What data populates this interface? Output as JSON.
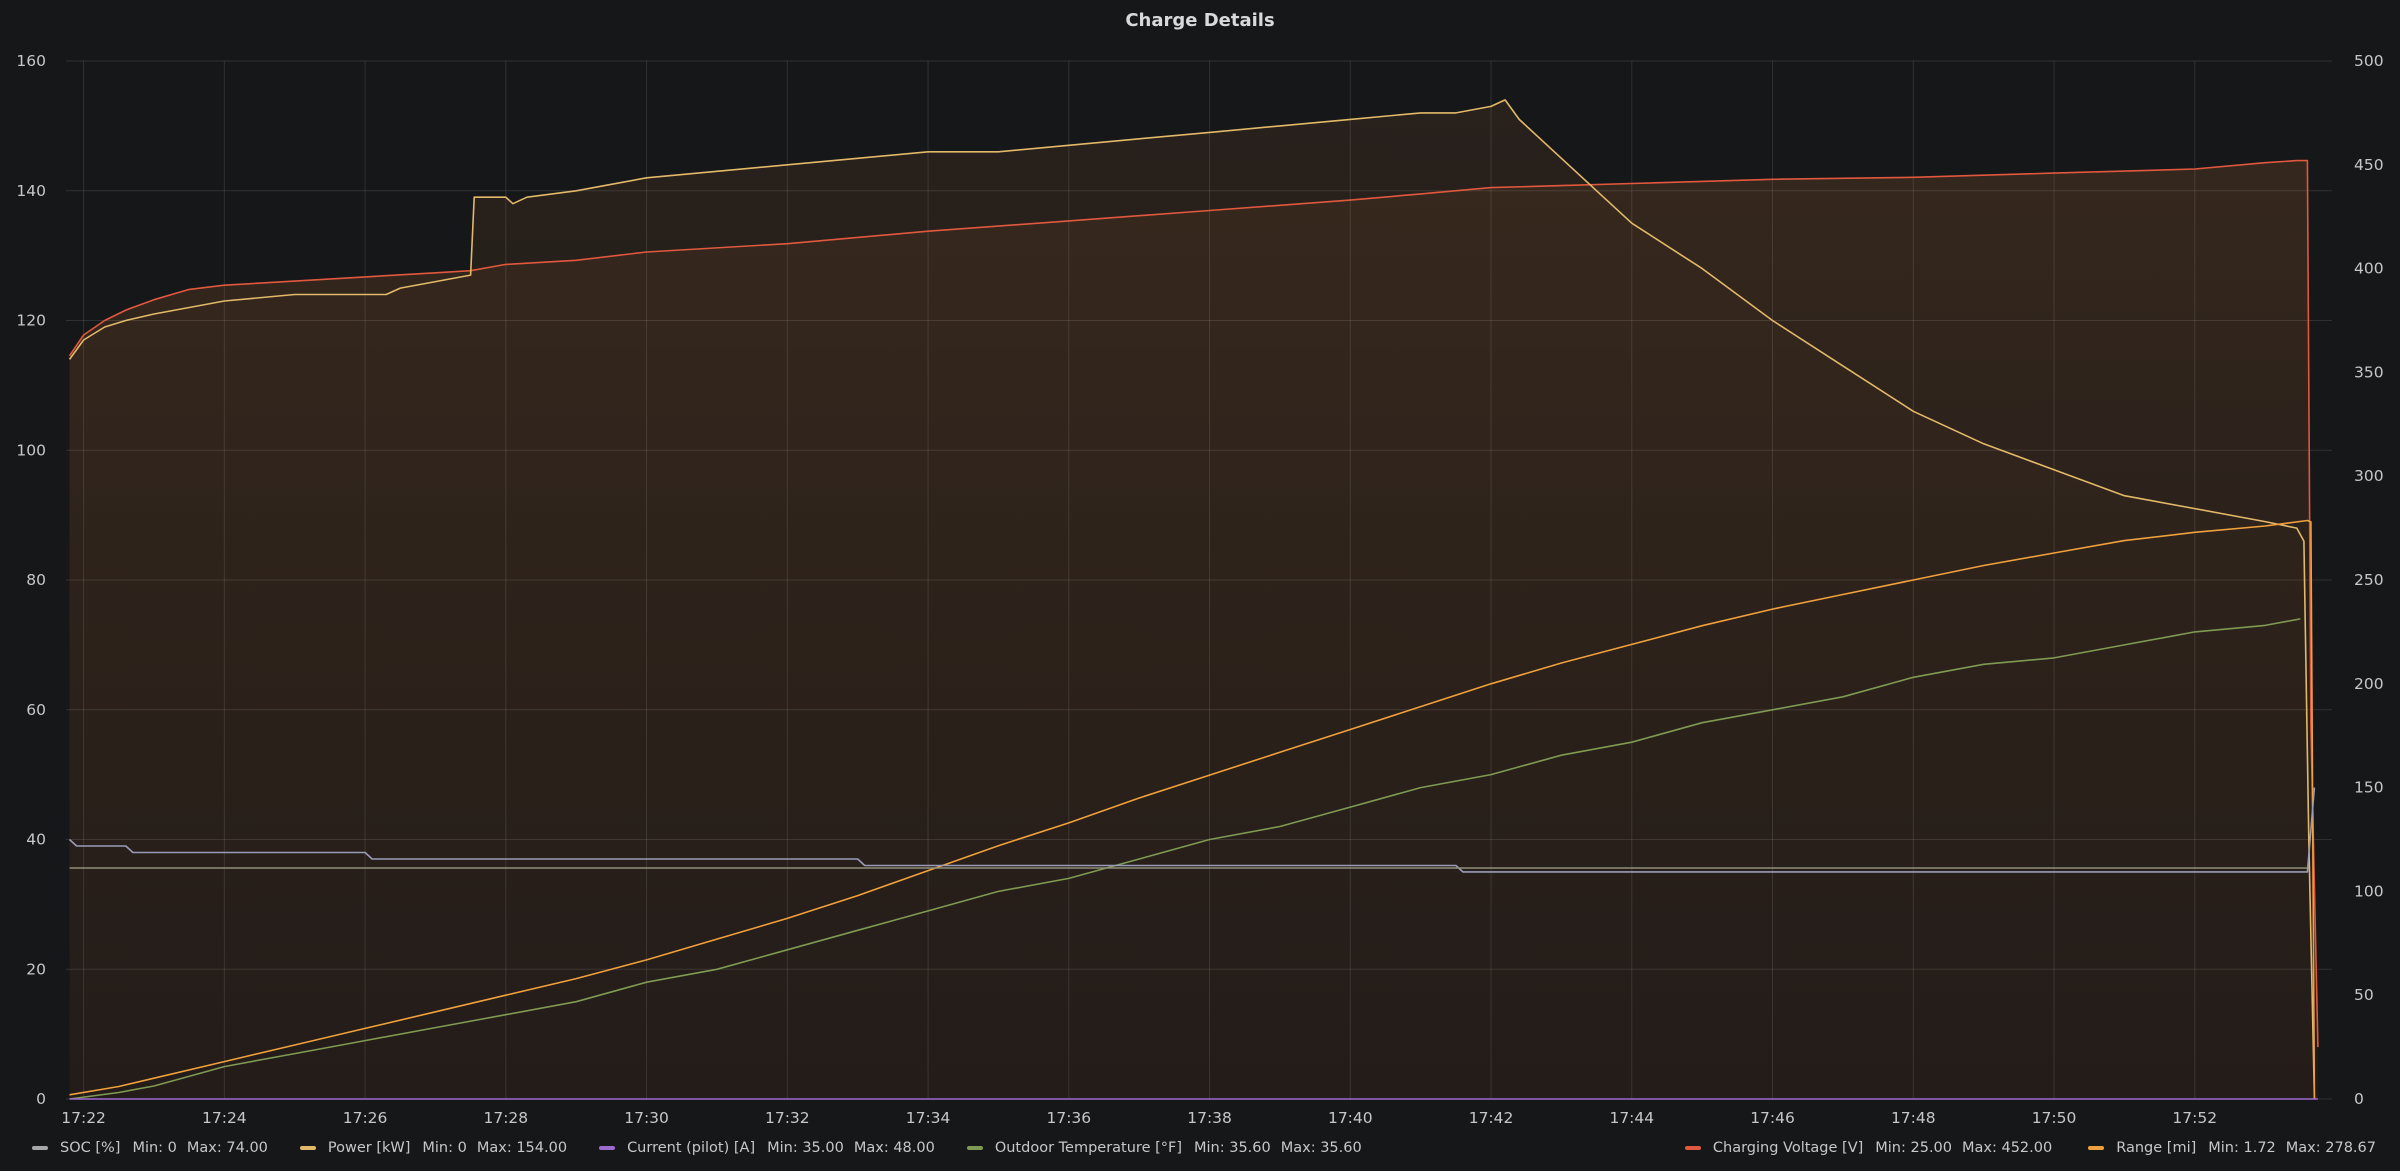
{
  "panel": {
    "title": "Charge Details"
  },
  "legend_left": [
    {
      "name": "SOC [%]",
      "min_label": "Min: 0",
      "max_label": "Max: 74.00",
      "color": "#a6a7a9",
      "icon": "legend-line-icon"
    },
    {
      "name": "Power [kW]",
      "min_label": "Min: 0",
      "max_label": "Max: 154.00",
      "color": "#e2b968",
      "icon": "legend-line-icon"
    },
    {
      "name": "Current (pilot) [A]",
      "min_label": "Min: 35.00",
      "max_label": "Max: 48.00",
      "color": "#9d6bd0",
      "icon": "legend-line-icon"
    },
    {
      "name": "Outdoor Temperature [°F]",
      "min_label": "Min: 35.60",
      "max_label": "Max: 35.60",
      "color": "#7f9a52",
      "icon": "legend-line-icon"
    }
  ],
  "legend_right": [
    {
      "name": "Charging Voltage [V]",
      "min_label": "Min: 25.00",
      "max_label": "Max: 452.00",
      "color": "#e0583e",
      "icon": "legend-line-icon"
    },
    {
      "name": "Range [mi]",
      "min_label": "Min: 1.72",
      "max_label": "Max: 278.67",
      "color": "#f0a03c",
      "icon": "legend-line-icon"
    }
  ],
  "chart_data": {
    "type": "line",
    "title": "Charge Details",
    "xlabel": "",
    "ylabel": "",
    "x_ticks": [
      "17:22",
      "17:24",
      "17:26",
      "17:28",
      "17:30",
      "17:32",
      "17:34",
      "17:36",
      "17:38",
      "17:40",
      "17:42",
      "17:44",
      "17:46",
      "17:48",
      "17:50",
      "17:52"
    ],
    "x_range_minutes": [
      21.75,
      53.95
    ],
    "y_left": {
      "ticks": [
        0,
        20,
        40,
        60,
        80,
        100,
        120,
        140,
        160
      ],
      "ylim": [
        0,
        160
      ]
    },
    "y_right": {
      "ticks": [
        0,
        50,
        100,
        150,
        200,
        250,
        300,
        350,
        400,
        450,
        500
      ],
      "ylim": [
        0,
        500
      ]
    },
    "grid": true,
    "legend_position": "bottom",
    "series": [
      {
        "name": "Charging Voltage [V]",
        "axis": "right",
        "color": "#e0583e",
        "fill": true,
        "points": [
          [
            21.8,
            358
          ],
          [
            22.0,
            368
          ],
          [
            22.3,
            375
          ],
          [
            22.6,
            380
          ],
          [
            23.0,
            385
          ],
          [
            23.5,
            390
          ],
          [
            24.0,
            392
          ],
          [
            25.0,
            394
          ],
          [
            26.0,
            396
          ],
          [
            27.0,
            398
          ],
          [
            27.5,
            399
          ],
          [
            28.0,
            402
          ],
          [
            29.0,
            404
          ],
          [
            30.0,
            408
          ],
          [
            32.0,
            412
          ],
          [
            34.0,
            418
          ],
          [
            36.0,
            423
          ],
          [
            38.0,
            428
          ],
          [
            40.0,
            433
          ],
          [
            41.0,
            436
          ],
          [
            42.0,
            439
          ],
          [
            43.0,
            440
          ],
          [
            44.0,
            441
          ],
          [
            46.0,
            443
          ],
          [
            48.0,
            444
          ],
          [
            50.0,
            446
          ],
          [
            52.0,
            448
          ],
          [
            53.0,
            451
          ],
          [
            53.45,
            452
          ],
          [
            53.6,
            452
          ],
          [
            53.65,
            180
          ],
          [
            53.75,
            25
          ]
        ]
      },
      {
        "name": "Power [kW]",
        "axis": "left",
        "color": "#e2b968",
        "fill": true,
        "points": [
          [
            21.8,
            114
          ],
          [
            22.0,
            117
          ],
          [
            22.3,
            119
          ],
          [
            22.6,
            120
          ],
          [
            23.0,
            121
          ],
          [
            23.5,
            122
          ],
          [
            24.0,
            123
          ],
          [
            25.0,
            124
          ],
          [
            26.0,
            124
          ],
          [
            26.3,
            124
          ],
          [
            26.5,
            125
          ],
          [
            27.0,
            126
          ],
          [
            27.5,
            127
          ],
          [
            27.55,
            139
          ],
          [
            28.0,
            139
          ],
          [
            28.1,
            138
          ],
          [
            28.3,
            139
          ],
          [
            29.0,
            140
          ],
          [
            29.5,
            141
          ],
          [
            30.0,
            142
          ],
          [
            31.0,
            143
          ],
          [
            32.0,
            144
          ],
          [
            33.0,
            145
          ],
          [
            34.0,
            146
          ],
          [
            35.0,
            146
          ],
          [
            36.0,
            147
          ],
          [
            37.0,
            148
          ],
          [
            38.0,
            149
          ],
          [
            39.0,
            150
          ],
          [
            40.0,
            151
          ],
          [
            41.0,
            152
          ],
          [
            41.5,
            152
          ],
          [
            42.0,
            153
          ],
          [
            42.2,
            154
          ],
          [
            42.4,
            151
          ],
          [
            42.8,
            147
          ],
          [
            43.2,
            143
          ],
          [
            43.5,
            140
          ],
          [
            44.0,
            135
          ],
          [
            45.0,
            128
          ],
          [
            46.0,
            120
          ],
          [
            47.0,
            113
          ],
          [
            48.0,
            106
          ],
          [
            49.0,
            101
          ],
          [
            50.0,
            97
          ],
          [
            51.0,
            93
          ],
          [
            52.0,
            91
          ],
          [
            53.0,
            89
          ],
          [
            53.45,
            88
          ],
          [
            53.55,
            86
          ],
          [
            53.62,
            40
          ],
          [
            53.7,
            0
          ]
        ]
      },
      {
        "name": "Range [mi]",
        "axis": "right",
        "color": "#f0a03c",
        "fill": false,
        "points": [
          [
            21.8,
            2
          ],
          [
            22.5,
            6
          ],
          [
            23.0,
            10
          ],
          [
            24.0,
            18
          ],
          [
            25.0,
            26
          ],
          [
            26.0,
            34
          ],
          [
            27.0,
            42
          ],
          [
            28.0,
            50
          ],
          [
            29.0,
            58
          ],
          [
            30.0,
            67
          ],
          [
            31.0,
            77
          ],
          [
            32.0,
            87
          ],
          [
            33.0,
            98
          ],
          [
            34.0,
            110
          ],
          [
            35.0,
            122
          ],
          [
            36.0,
            133
          ],
          [
            37.0,
            145
          ],
          [
            38.0,
            156
          ],
          [
            39.0,
            167
          ],
          [
            40.0,
            178
          ],
          [
            41.0,
            189
          ],
          [
            42.0,
            200
          ],
          [
            43.0,
            210
          ],
          [
            44.0,
            219
          ],
          [
            45.0,
            228
          ],
          [
            46.0,
            236
          ],
          [
            47.0,
            243
          ],
          [
            48.0,
            250
          ],
          [
            49.0,
            257
          ],
          [
            50.0,
            263
          ],
          [
            51.0,
            269
          ],
          [
            52.0,
            273
          ],
          [
            53.0,
            276
          ],
          [
            53.6,
            278.67
          ],
          [
            53.65,
            278
          ],
          [
            53.7,
            0
          ]
        ]
      },
      {
        "name": "SOC [%]",
        "axis": "left",
        "color": "#7f9a52",
        "fill": false,
        "points": [
          [
            21.8,
            0
          ],
          [
            22.5,
            1
          ],
          [
            23.0,
            2
          ],
          [
            24.0,
            5
          ],
          [
            25.0,
            7
          ],
          [
            26.0,
            9
          ],
          [
            27.0,
            11
          ],
          [
            28.0,
            13
          ],
          [
            29.0,
            15
          ],
          [
            30.0,
            18
          ],
          [
            31.0,
            20
          ],
          [
            32.0,
            23
          ],
          [
            33.0,
            26
          ],
          [
            34.0,
            29
          ],
          [
            35.0,
            32
          ],
          [
            36.0,
            34
          ],
          [
            37.0,
            37
          ],
          [
            38.0,
            40
          ],
          [
            39.0,
            42
          ],
          [
            40.0,
            45
          ],
          [
            41.0,
            48
          ],
          [
            42.0,
            50
          ],
          [
            43.0,
            53
          ],
          [
            44.0,
            55
          ],
          [
            45.0,
            58
          ],
          [
            46.0,
            60
          ],
          [
            47.0,
            62
          ],
          [
            48.0,
            65
          ],
          [
            49.0,
            67
          ],
          [
            50.0,
            68
          ],
          [
            51.0,
            70
          ],
          [
            52.0,
            72
          ],
          [
            53.0,
            73
          ],
          [
            53.5,
            74
          ]
        ]
      },
      {
        "name": "Current (pilot) [A]",
        "axis": "left",
        "color": "#9a9bb8",
        "fill": false,
        "points": [
          [
            21.8,
            40
          ],
          [
            21.9,
            39
          ],
          [
            22.6,
            39
          ],
          [
            22.7,
            38
          ],
          [
            26.0,
            38
          ],
          [
            26.1,
            37
          ],
          [
            33.0,
            37
          ],
          [
            33.1,
            36
          ],
          [
            41.5,
            36
          ],
          [
            41.6,
            35
          ],
          [
            53.6,
            35
          ],
          [
            53.7,
            48
          ]
        ]
      },
      {
        "name": "Outdoor Temperature [°F]",
        "axis": "left",
        "color": "#8f8e7a",
        "fill": false,
        "points": [
          [
            21.8,
            35.6
          ],
          [
            53.6,
            35.6
          ]
        ]
      },
      {
        "name": "Current (pilot) [A] baseline",
        "axis": "left",
        "color": "#9d6bd0",
        "fill": false,
        "points": [
          [
            21.8,
            0
          ],
          [
            53.75,
            0
          ]
        ]
      }
    ]
  }
}
